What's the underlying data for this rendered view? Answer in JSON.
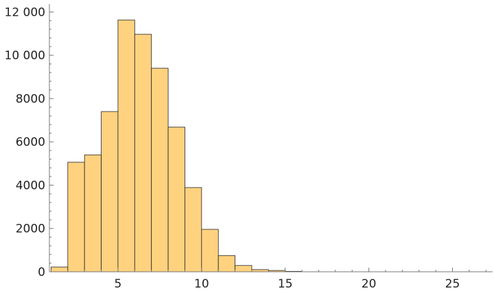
{
  "chart_data": {
    "type": "bar",
    "title": "",
    "xlabel": "",
    "ylabel": "",
    "bin_width": 1,
    "bins": [
      {
        "start": 1,
        "end": 2,
        "value": 220
      },
      {
        "start": 2,
        "end": 3,
        "value": 5060
      },
      {
        "start": 3,
        "end": 4,
        "value": 5400
      },
      {
        "start": 4,
        "end": 5,
        "value": 7400
      },
      {
        "start": 5,
        "end": 6,
        "value": 11630
      },
      {
        "start": 6,
        "end": 7,
        "value": 10970
      },
      {
        "start": 7,
        "end": 8,
        "value": 9400
      },
      {
        "start": 8,
        "end": 9,
        "value": 6680
      },
      {
        "start": 9,
        "end": 10,
        "value": 3890
      },
      {
        "start": 10,
        "end": 11,
        "value": 1960
      },
      {
        "start": 11,
        "end": 12,
        "value": 750
      },
      {
        "start": 12,
        "end": 13,
        "value": 290
      },
      {
        "start": 13,
        "end": 14,
        "value": 100
      },
      {
        "start": 14,
        "end": 15,
        "value": 60
      },
      {
        "start": 15,
        "end": 16,
        "value": 20
      }
    ],
    "xlim": [
      0.9,
      27.4
    ],
    "ylim": [
      0,
      12300
    ],
    "xticks": [
      5,
      10,
      15,
      20,
      25
    ],
    "xtick_labels": [
      "5",
      "10",
      "15",
      "20",
      "25"
    ],
    "yticks": [
      0,
      2000,
      4000,
      6000,
      8000,
      10000,
      12000
    ],
    "ytick_labels": [
      "0",
      "2000",
      "4000",
      "6000",
      "8000",
      "10 000",
      "12 000"
    ],
    "bar_color": "#FFD280",
    "bar_edge_color": "#222222",
    "grid": false,
    "legend": "none"
  }
}
